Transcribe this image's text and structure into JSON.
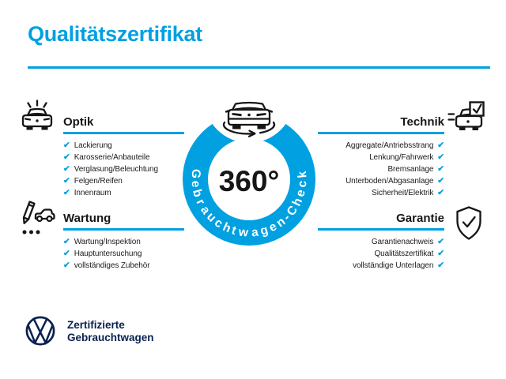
{
  "colors": {
    "accent": "#00A0E1",
    "navy": "#0A2150",
    "ink": "#161616",
    "white": "#FFFFFF"
  },
  "header": {
    "title": "Qualitätszertifikat"
  },
  "icons": {
    "check_glyph": "✔",
    "optik_icon": "car-front-shine-icon",
    "technik_icon": "car-checkbox-icon",
    "wartung_icon": "pencil-car-checklist-icon",
    "garantie_icon": "shield-check-icon",
    "center_icon": "car-rotation-360-icon",
    "brand_icon": "vw-logo-icon"
  },
  "center": {
    "degree_label": "360°",
    "ring_label": "Gebrauchtwagen-Check"
  },
  "sections": {
    "optik": {
      "heading": "Optik",
      "items": [
        "Lackierung",
        "Karosserie/Anbauteile",
        "Verglasung/Beleuchtung",
        "Felgen/Reifen",
        "Innenraum"
      ]
    },
    "technik": {
      "heading": "Technik",
      "items": [
        "Aggregate/Antriebsstrang",
        "Lenkung/Fahrwerk",
        "Bremsanlage",
        "Unterboden/Abgasanlage",
        "Sicherheit/Elektrik"
      ]
    },
    "wartung": {
      "heading": "Wartung",
      "items": [
        "Wartung/Inspektion",
        "Hauptuntersuchung",
        "vollständiges Zubehör"
      ]
    },
    "garantie": {
      "heading": "Garantie",
      "items": [
        "Garantienachweis",
        "Qualitätszertifikat",
        "vollständige Unterlagen"
      ]
    }
  },
  "footer": {
    "brand_line1": "Zertifizierte",
    "brand_line2": "Gebrauchtwagen"
  }
}
